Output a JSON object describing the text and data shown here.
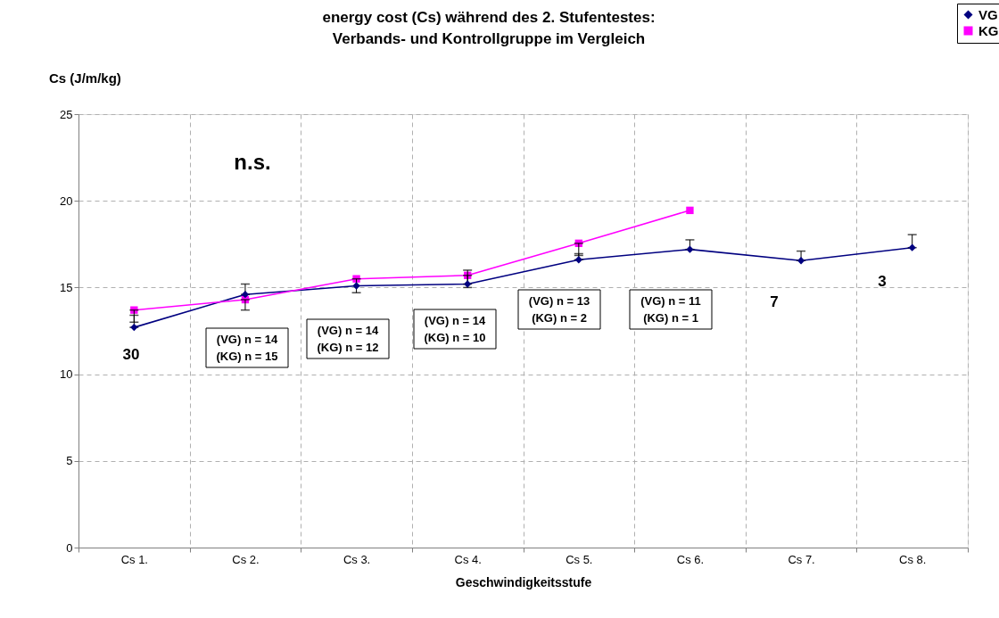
{
  "chart_data": {
    "type": "line",
    "title": "energy cost (Cs) während des 2. Stufentestes:\nVerbands- und Kontrollgruppe im Vergleich",
    "xlabel": "Geschwindigkeitsstufe",
    "ylabel": "Cs (J/m/kg)",
    "categories": [
      "Cs 1.",
      "Cs 2.",
      "Cs 3.",
      "Cs 4.",
      "Cs 5.",
      "Cs 6.",
      "Cs 7.",
      "Cs 8."
    ],
    "series": [
      {
        "name": "VG",
        "color": "#000080",
        "marker": "diamond",
        "values": [
          12.7,
          14.6,
          15.1,
          15.2,
          16.6,
          17.2,
          16.55,
          17.3
        ],
        "errors": [
          [
            12.7,
            13.4
          ],
          [
            14.6,
            15.2
          ],
          null,
          [
            15.2,
            16.0
          ],
          [
            16.6,
            16.95
          ],
          [
            17.2,
            17.75
          ],
          [
            16.55,
            17.1
          ],
          [
            17.3,
            18.05
          ]
        ]
      },
      {
        "name": "KG",
        "color": "#ff00ff",
        "marker": "square",
        "values": [
          13.7,
          14.3,
          15.5,
          15.7,
          17.55,
          19.45,
          null,
          null
        ],
        "errors": [
          [
            13.0,
            13.7
          ],
          [
            13.7,
            14.3
          ],
          [
            14.7,
            15.5
          ],
          [
            15.0,
            15.7
          ],
          [
            16.85,
            17.55
          ],
          null,
          null,
          null
        ]
      }
    ],
    "ylim": [
      0,
      25
    ],
    "yticks": [
      0,
      5,
      10,
      15,
      20,
      25
    ],
    "grid": true,
    "legend": "top right",
    "line_style": "solid",
    "annotations": [
      "n.s.",
      "30",
      "(VG) n = 14\n(KG) n = 15",
      "(VG) n = 14\n(KG) n = 12",
      "(VG) n = 14\n(KG) n = 10",
      "(VG) n = 13\n(KG) n = 2",
      "(VG) n = 11\n(KG) n = 1",
      "7",
      "3"
    ]
  }
}
